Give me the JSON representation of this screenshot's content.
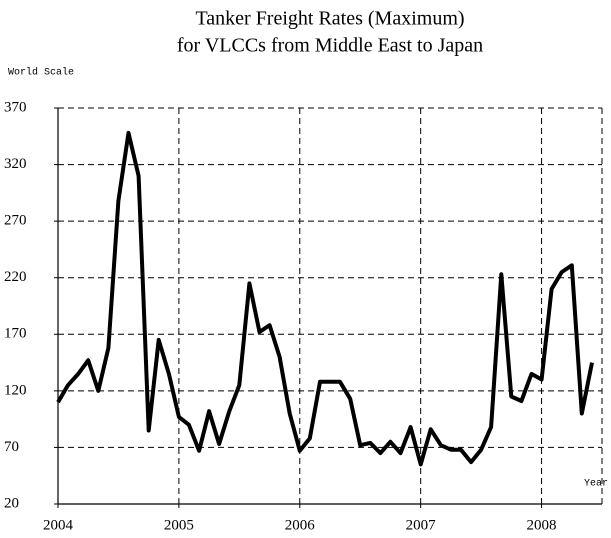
{
  "chart_data": {
    "type": "line",
    "title": [
      "Tanker Freight Rates (Maximum)",
      "for VLCCs from Middle East to Japan"
    ],
    "y_label": "World Scale",
    "x_label": "Year",
    "x": [
      2004,
      2004.083,
      2004.167,
      2004.25,
      2004.333,
      2004.417,
      2004.5,
      2004.583,
      2004.667,
      2004.75,
      2004.833,
      2004.917,
      2005,
      2005.083,
      2005.167,
      2005.25,
      2005.333,
      2005.417,
      2005.5,
      2005.583,
      2005.667,
      2005.75,
      2005.833,
      2005.917,
      2006,
      2006.083,
      2006.167,
      2006.25,
      2006.333,
      2006.417,
      2006.5,
      2006.583,
      2006.667,
      2006.75,
      2006.833,
      2006.917,
      2007,
      2007.083,
      2007.167,
      2007.25,
      2007.333,
      2007.417,
      2007.5,
      2007.583,
      2007.667,
      2007.75,
      2007.833,
      2007.917,
      2008,
      2008.083,
      2008.167,
      2008.25,
      2008.333,
      2008.417
    ],
    "values": [
      110,
      125,
      135,
      147,
      120,
      158,
      288,
      348,
      310,
      85,
      165,
      135,
      97,
      90,
      67,
      102,
      73,
      102,
      125,
      215,
      172,
      178,
      150,
      100,
      67,
      78,
      128,
      128,
      128,
      113,
      72,
      74,
      65,
      75,
      65,
      88,
      55,
      86,
      72,
      68,
      68,
      57,
      68,
      88,
      223,
      115,
      111,
      135,
      130,
      210,
      225,
      231,
      100,
      145
    ],
    "color": "#000000",
    "xlim": [
      2004,
      2008.5
    ],
    "xticks": [
      2004,
      2005,
      2006,
      2007,
      2008
    ],
    "ylim": [
      20,
      370
    ],
    "yticks": [
      20,
      70,
      120,
      170,
      220,
      270,
      320,
      370
    ],
    "grid": true
  }
}
